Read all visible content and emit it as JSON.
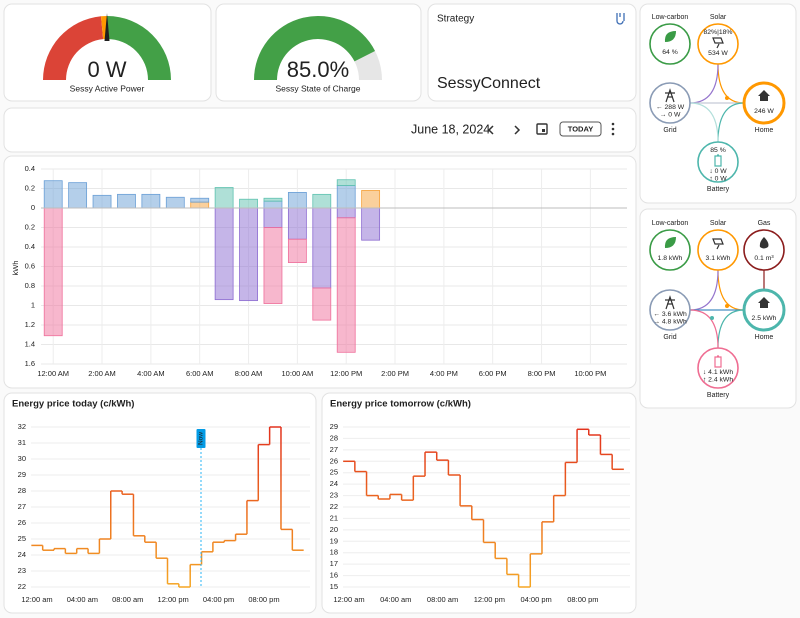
{
  "gauges": [
    {
      "value": 0,
      "value_label": "0 W",
      "label": "Sessy Active Power"
    },
    {
      "value": 85.0,
      "value_label": "85.0%",
      "label": "Sessy State of Charge"
    }
  ],
  "strategy": {
    "title": "Strategy",
    "value": "SessyConnect"
  },
  "date_picker": {
    "date": "June 18, 2024",
    "today_button": "TODAY"
  },
  "chart_data": [
    {
      "type": "bar",
      "stacked": true,
      "y_label": "kWh",
      "categories": [
        "12:00 AM",
        null,
        "2:00 AM",
        null,
        "4:00 AM",
        null,
        "6:00 AM",
        null,
        "8:00 AM",
        null,
        "10:00 AM",
        null,
        "12:00 PM",
        null,
        "2:00 PM",
        null,
        "4:00 PM",
        null,
        "6:00 PM",
        null,
        "8:00 PM",
        null,
        "10:00 PM",
        null
      ],
      "series": [
        {
          "color": "#f6a23a",
          "values": [
            0,
            0,
            0,
            0,
            0,
            0,
            0.06,
            0,
            0,
            0,
            0,
            0,
            0,
            0.18,
            null,
            null,
            null,
            null,
            null,
            null,
            null,
            null,
            null,
            null
          ]
        },
        {
          "color": "#6a9fd6",
          "values": [
            0.28,
            0.26,
            0.13,
            0.14,
            0.14,
            0.11,
            0.04,
            0,
            0,
            0.07,
            0.16,
            0,
            0.23,
            0,
            null,
            null,
            null,
            null,
            null,
            null,
            null,
            null,
            null,
            null
          ]
        },
        {
          "color": "#5fc2b0",
          "values": [
            0,
            0,
            0,
            0,
            0,
            0,
            0,
            0.21,
            0.09,
            0.03,
            0,
            0.14,
            0.06,
            0,
            null,
            null,
            null,
            null,
            null,
            null,
            null,
            null,
            null,
            null
          ]
        },
        {
          "color": "#8c6bd1",
          "values": [
            0,
            0,
            0,
            0,
            0,
            0,
            0,
            -0.94,
            -0.95,
            -0.2,
            -0.32,
            -0.82,
            -0.1,
            -0.33,
            null,
            null,
            null,
            null,
            null,
            null,
            null,
            null,
            null,
            null
          ]
        },
        {
          "color": "#ef6f9b",
          "values": [
            -1.31,
            0,
            0,
            0,
            0,
            0,
            0,
            0,
            0,
            -0.78,
            -0.24,
            -0.33,
            -1.38,
            0,
            null,
            null,
            null,
            null,
            null,
            null,
            null,
            null,
            null,
            null
          ]
        }
      ],
      "ylim": [
        -1.6,
        0.4
      ],
      "yticks": [
        0.4,
        0.2,
        0,
        {
          "value": -0.2,
          "label": "0.2"
        },
        {
          "value": -0.4,
          "label": "0.4"
        },
        {
          "value": -0.6,
          "label": "0.6"
        },
        {
          "value": -0.8,
          "label": "0.8"
        },
        {
          "value": -1,
          "label": "1"
        },
        {
          "value": -1.2,
          "label": "1.2"
        },
        {
          "value": -1.4,
          "label": "1.4"
        },
        {
          "value": -1.6,
          "label": "1.6"
        }
      ],
      "grid": true
    },
    {
      "type": "line",
      "step": true,
      "title": "Energy price today (c/kWh)",
      "annotation": "Now",
      "categories": [
        "12:00 am",
        null,
        null,
        null,
        "04:00 am",
        null,
        null,
        null,
        "08:00 am",
        null,
        null,
        null,
        "12:00 pm",
        null,
        null,
        null,
        "04:00 pm",
        null,
        null,
        null,
        "08:00 pm",
        null,
        null,
        null
      ],
      "values": [
        24.6,
        24.3,
        24.4,
        24.1,
        24.4,
        24.1,
        25.0,
        28.0,
        27.8,
        25.2,
        24.8,
        23.8,
        22.2,
        22.0,
        23.4,
        24.2,
        24.8,
        24.9,
        25.3,
        27.4,
        30.9,
        32.0,
        25.6,
        24.3
      ],
      "gradient": [
        "#f5a623",
        "#e2311d"
      ],
      "ylim": [
        22,
        32
      ],
      "yticks": [
        22,
        23,
        24,
        25,
        26,
        27,
        28,
        29,
        30,
        31,
        32
      ],
      "grid": true
    },
    {
      "type": "line",
      "step": true,
      "title": "Energy price tomorrow (c/kWh)",
      "categories": [
        "12:00 am",
        null,
        null,
        null,
        "04:00 am",
        null,
        null,
        null,
        "08:00 am",
        null,
        null,
        null,
        "12:00 pm",
        null,
        null,
        null,
        "04:00 pm",
        null,
        null,
        null,
        "08:00 pm",
        null,
        null,
        null
      ],
      "values": [
        26.0,
        25.1,
        23.0,
        22.7,
        23.1,
        22.6,
        24.7,
        26.8,
        26.1,
        24.8,
        22.1,
        20.9,
        18.9,
        17.5,
        16.1,
        15.0,
        17.9,
        20.7,
        23.0,
        25.9,
        28.8,
        28.3,
        26.6,
        25.3
      ],
      "gradient": [
        "#f5a623",
        "#e2311d"
      ],
      "ylim": [
        15,
        29
      ],
      "yticks": [
        15,
        16,
        17,
        18,
        19,
        20,
        21,
        22,
        23,
        24,
        25,
        26,
        27,
        28,
        29
      ],
      "grid": true
    }
  ],
  "power_flow": {
    "nodes": [
      {
        "label": "Low-carbon",
        "lines": [
          "64 %"
        ]
      },
      {
        "label": "Solar",
        "top": "82%|18%",
        "lines": [
          "534 W"
        ]
      },
      {
        "label": "Grid",
        "lines": [
          "← 288 W",
          "→ 0 W"
        ]
      },
      {
        "label": "Home",
        "lines": [
          "246 W"
        ]
      },
      {
        "label": "Battery",
        "top": "85 %",
        "lines": [
          "↓ 0 W",
          "↑ 0 W"
        ]
      }
    ]
  },
  "energy_flow": {
    "nodes": [
      {
        "label": "Low-carbon",
        "lines": [
          "1.8 kWh"
        ]
      },
      {
        "label": "Solar",
        "lines": [
          "3.1 kWh"
        ]
      },
      {
        "label": "Gas",
        "lines": [
          "0.1 m³"
        ]
      },
      {
        "label": "Grid",
        "lines": [
          "← 3.6 kWh",
          "→ 4.8 kWh"
        ]
      },
      {
        "label": "Home",
        "lines": [
          "2.5 kWh"
        ]
      },
      {
        "label": "Battery",
        "lines": [
          "↓ 4.1 kWh",
          "↑ 2.4 kWh"
        ]
      }
    ]
  }
}
